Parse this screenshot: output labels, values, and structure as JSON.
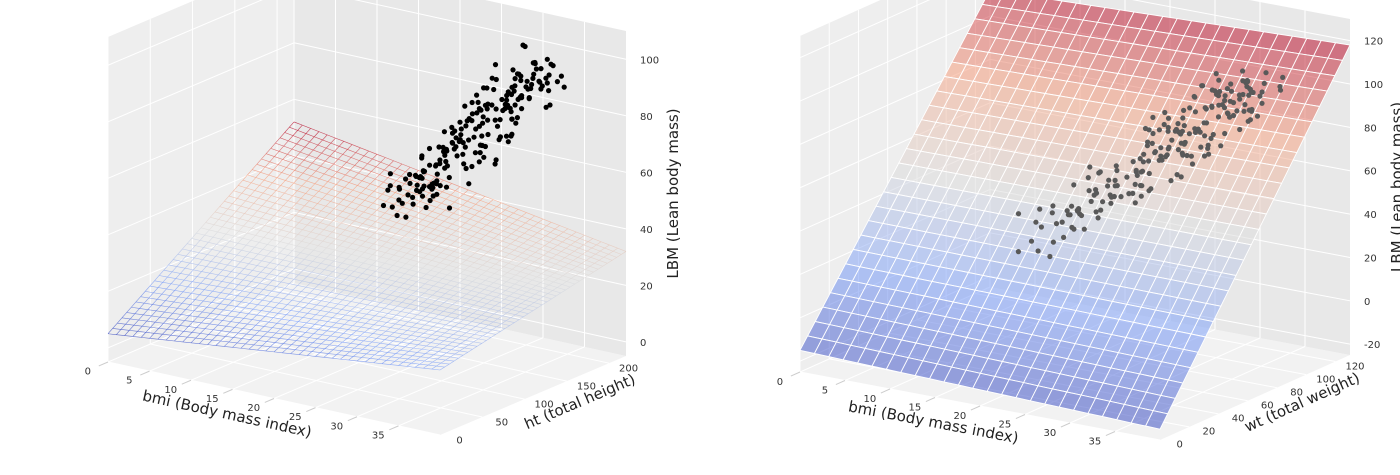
{
  "chart_data": [
    {
      "type": "surface3d",
      "panel": "left",
      "xlabel": "bmi (Body mass index)",
      "ylabel": "ht (total height)",
      "zlabel": "LBM (Lean body mass)",
      "x_ticks": [
        0,
        5,
        10,
        15,
        20,
        25,
        30,
        35
      ],
      "y_ticks": [
        0,
        50,
        100,
        150,
        200
      ],
      "z_ticks": [
        0,
        20,
        40,
        60,
        80,
        100
      ],
      "xlim": [
        0,
        40
      ],
      "ylim": [
        0,
        220
      ],
      "zlim": [
        -5,
        110
      ],
      "grid": true,
      "surface": {
        "style": "wireframe",
        "colormap": "coolwarm",
        "x_range": [
          0,
          40
        ],
        "y_range": [
          0,
          220
        ],
        "z_corners": [
          5,
          18,
          32,
          52
        ],
        "grid_lines": 40
      },
      "scatter": {
        "color": "#000000",
        "cluster": {
          "bmi_range": [
            16,
            35
          ],
          "ht_range": [
            150,
            210
          ],
          "lbm_range": [
            35,
            105
          ],
          "count": 200
        }
      }
    },
    {
      "type": "surface3d",
      "panel": "right",
      "xlabel": "bmi (Body mass index)",
      "ylabel": "wt (total weight)",
      "zlabel": "LBM (Lean body mass)",
      "x_ticks": [
        0,
        5,
        10,
        15,
        20,
        25,
        30,
        35
      ],
      "y_ticks": [
        0,
        20,
        40,
        60,
        80,
        100,
        120
      ],
      "z_ticks": [
        -20,
        0,
        20,
        40,
        60,
        80,
        100,
        120
      ],
      "xlim": [
        0,
        40
      ],
      "ylim": [
        0,
        130
      ],
      "zlim": [
        -25,
        130
      ],
      "grid": true,
      "surface": {
        "style": "surface",
        "colormap": "coolwarm",
        "x_range": [
          0,
          40
        ],
        "y_range": [
          0,
          130
        ],
        "z_corners": [
          -15,
          -20,
          118,
          112
        ],
        "grid_lines": 25
      },
      "scatter": {
        "color": "#595959",
        "cluster": {
          "bmi_range": [
            16,
            35
          ],
          "wt_range": [
            35,
            125
          ],
          "lbm_range": [
            30,
            110
          ],
          "count": 200
        }
      }
    }
  ]
}
